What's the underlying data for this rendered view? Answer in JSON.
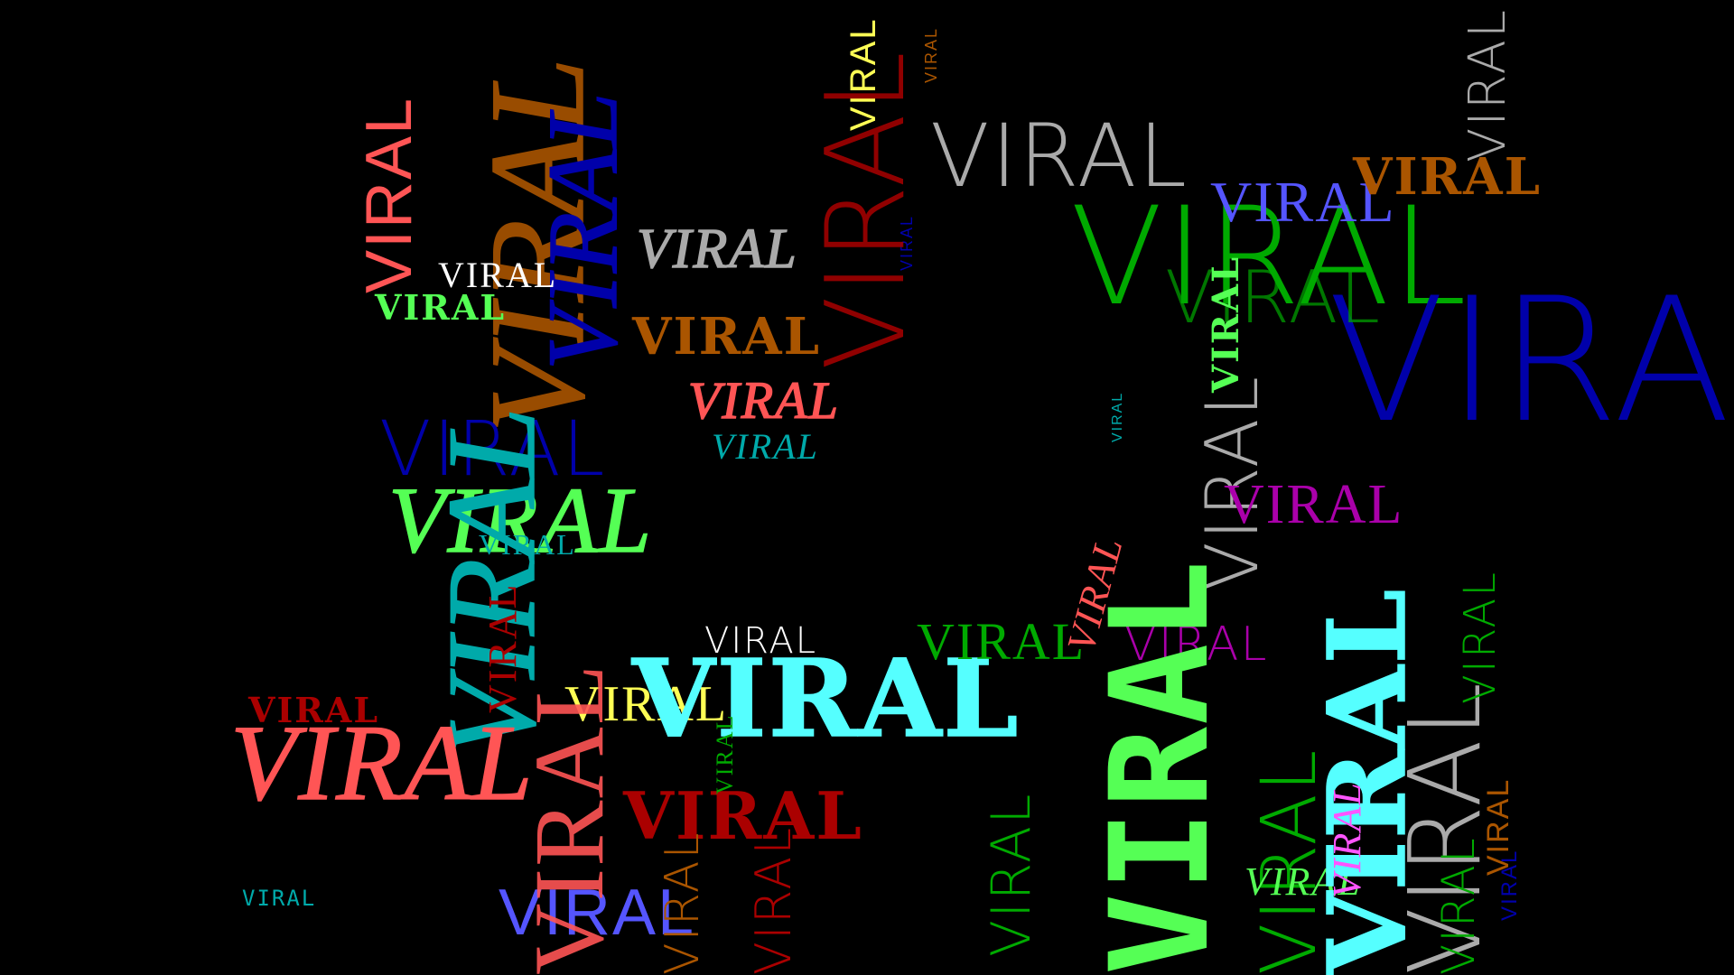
{
  "screen": {
    "background": "#000000",
    "word": "VIRAL"
  },
  "palette": {
    "red": "#ff5555",
    "darkred": "#aa0000",
    "green": "#55ff55",
    "darkgreen": "#00aa00",
    "blue": "#5555ff",
    "darkblue": "#0000aa",
    "cyan": "#55ffff",
    "darkcyan": "#00aaaa",
    "yellow": "#ffff55",
    "magenta": "#ff55ff",
    "purple": "#aa00aa",
    "orange": "#aa5500",
    "gray": "#aaaaaa",
    "white": "#ffffff"
  }
}
